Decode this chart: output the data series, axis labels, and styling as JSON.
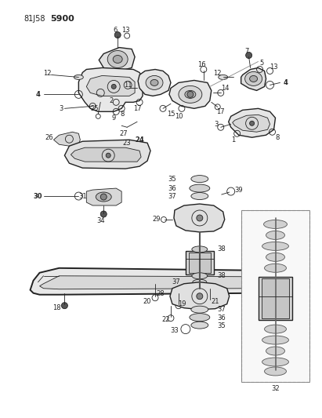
{
  "bg_color": "#ffffff",
  "line_color": "#222222",
  "figsize": [
    4.11,
    5.33
  ],
  "dpi": 100,
  "title1": "81J58",
  "title2": "5900"
}
